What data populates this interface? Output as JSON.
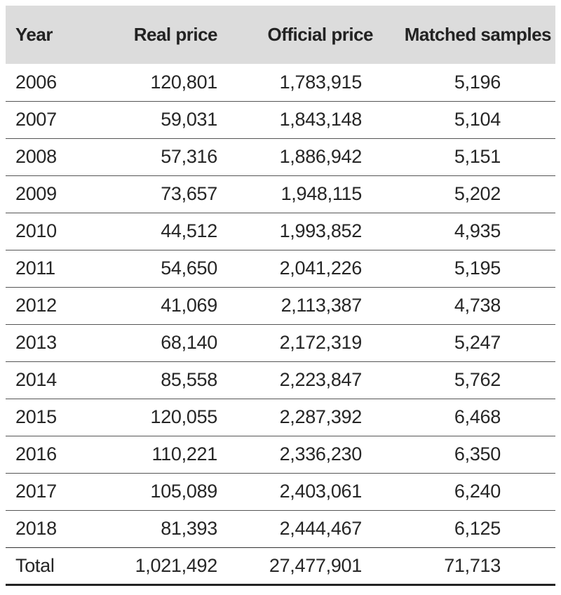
{
  "table": {
    "headers": {
      "year": "Year",
      "real_price": "Real price",
      "official_price": "Official price",
      "matched_samples": "Matched samples"
    },
    "rows": [
      {
        "year": "2006",
        "real_price": "120,801",
        "official_price": "1,783,915",
        "matched_samples": "5,196"
      },
      {
        "year": "2007",
        "real_price": "59,031",
        "official_price": "1,843,148",
        "matched_samples": "5,104"
      },
      {
        "year": "2008",
        "real_price": "57,316",
        "official_price": "1,886,942",
        "matched_samples": "5,151"
      },
      {
        "year": "2009",
        "real_price": "73,657",
        "official_price": "1,948,115",
        "matched_samples": "5,202"
      },
      {
        "year": "2010",
        "real_price": "44,512",
        "official_price": "1,993,852",
        "matched_samples": "4,935"
      },
      {
        "year": "2011",
        "real_price": "54,650",
        "official_price": "2,041,226",
        "matched_samples": "5,195"
      },
      {
        "year": "2012",
        "real_price": "41,069",
        "official_price": "2,113,387",
        "matched_samples": "4,738"
      },
      {
        "year": "2013",
        "real_price": "68,140",
        "official_price": "2,172,319",
        "matched_samples": "5,247"
      },
      {
        "year": "2014",
        "real_price": "85,558",
        "official_price": "2,223,847",
        "matched_samples": "5,762"
      },
      {
        "year": "2015",
        "real_price": "120,055",
        "official_price": "2,287,392",
        "matched_samples": "6,468"
      },
      {
        "year": "2016",
        "real_price": "110,221",
        "official_price": "2,336,230",
        "matched_samples": "6,350"
      },
      {
        "year": "2017",
        "real_price": "105,089",
        "official_price": "2,403,061",
        "matched_samples": "6,240"
      },
      {
        "year": "2018",
        "real_price": "81,393",
        "official_price": "2,444,467",
        "matched_samples": "6,125"
      }
    ],
    "total": {
      "year": "Total",
      "real_price": "1,021,492",
      "official_price": "27,477,901",
      "matched_samples": "71,713"
    }
  },
  "colors": {
    "header_background": "#dcdcdc",
    "text": "#222222",
    "rule": "#555555"
  }
}
